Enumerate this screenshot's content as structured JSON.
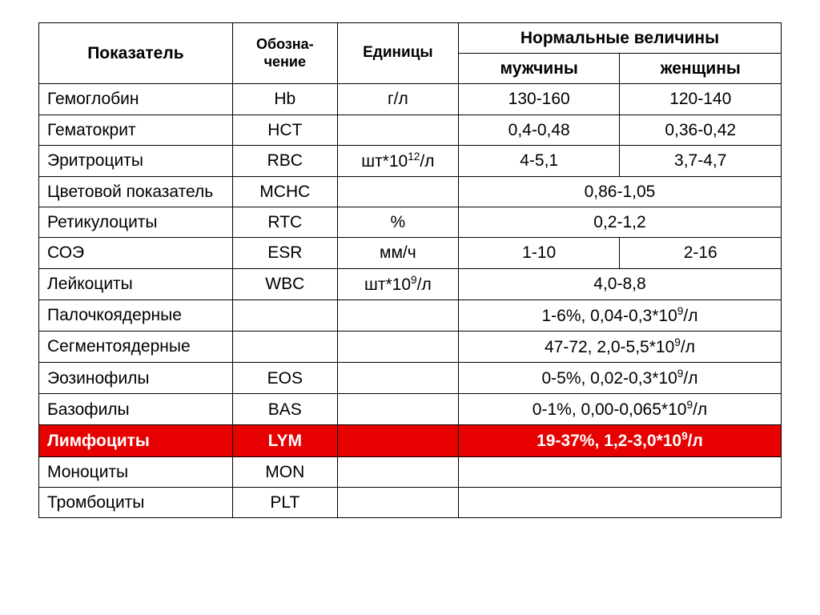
{
  "table": {
    "columns": {
      "indicator_width": 240,
      "abbrev_width": 130,
      "units_width": 150,
      "men_width": 200,
      "women_width": 200
    },
    "header": {
      "indicator": "Показатель",
      "abbrev": "Обозна-\nчение",
      "units": "Единицы",
      "normals_group": "Нормальные величины",
      "men": "мужчины",
      "women": "женщины"
    },
    "highlight_color": "#e60000",
    "row_fontsize": 21,
    "header_fontsize": 21,
    "rows": [
      {
        "name": "Гемоглобин",
        "abbr": "Hb",
        "unit": "г/л",
        "men": "130-160",
        "women": "120-140"
      },
      {
        "name": "Гематокрит",
        "abbr": "HCT",
        "unit": "",
        "men": "0,4-0,48",
        "women": "0,36-0,42"
      },
      {
        "name": "Эритроциты",
        "abbr": "RBC",
        "unit": "шт*10^12/л",
        "men": "4-5,1",
        "women": "3,7-4,7"
      },
      {
        "name": "Цветовой показатель",
        "abbr": "MCHC",
        "unit": "",
        "merged": "0,86-1,05"
      },
      {
        "name": "Ретикулоциты",
        "abbr": "RTC",
        "unit": "%",
        "merged": "0,2-1,2"
      },
      {
        "name": "СОЭ",
        "abbr": "ESR",
        "unit": "мм/ч",
        "men": "1-10",
        "women": "2-16"
      },
      {
        "name": "Лейкоциты",
        "abbr": "WBC",
        "unit": "шт*10^9/л",
        "merged": "4,0-8,8"
      },
      {
        "name": "Палочкоядерные",
        "abbr": "",
        "unit": "",
        "merged": "1-6%, 0,04-0,3*10^9/л"
      },
      {
        "name": "Сегментоядерные",
        "abbr": "",
        "unit": "",
        "merged": "47-72, 2,0-5,5*10^9/л"
      },
      {
        "name": "Эозинофилы",
        "abbr": "EOS",
        "unit": "",
        "merged": "0-5%, 0,02-0,3*10^9/л"
      },
      {
        "name": "Базофилы",
        "abbr": "BAS",
        "unit": "",
        "merged": "0-1%, 0,00-0,065*10^9/л"
      },
      {
        "name": "Лимфоциты",
        "abbr": "LYM",
        "unit": "",
        "merged": "19-37%, 1,2-3,0*10^9/л",
        "highlight": true
      },
      {
        "name": "Моноциты",
        "abbr": "MON",
        "unit": "",
        "merged": ""
      },
      {
        "name": "Тромбоциты",
        "abbr": "PLT",
        "unit": "",
        "merged": ""
      }
    ]
  }
}
